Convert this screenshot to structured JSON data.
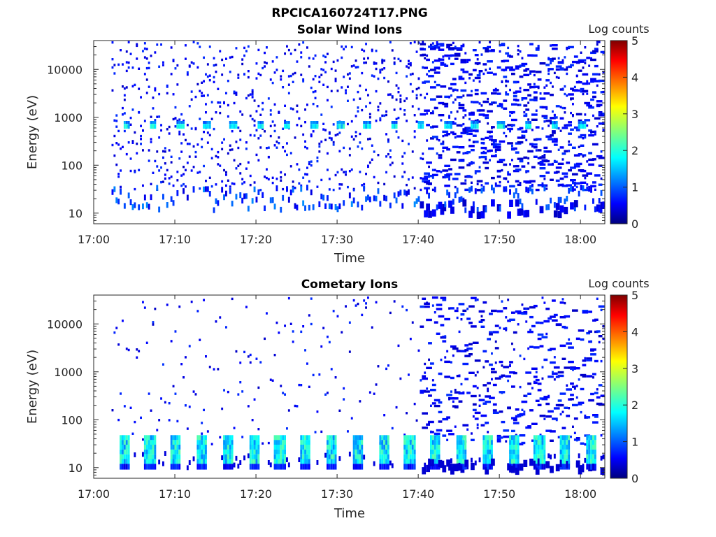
{
  "figure_title": "RPCICA160724T17.PNG",
  "chart_data": [
    {
      "type": "heatmap",
      "title": "Solar Wind Ions",
      "xlabel": "Time",
      "ylabel": "Energy (eV)",
      "xlim": [
        "17:00",
        "18:03"
      ],
      "ylim": [
        6,
        40000
      ],
      "yscale": "log",
      "x_ticks": [
        "17:00",
        "17:10",
        "17:20",
        "17:30",
        "17:40",
        "17:50",
        "18:00"
      ],
      "y_ticks": [
        "10",
        "100",
        "1000",
        "10000"
      ],
      "colorbar": {
        "label": "Log counts",
        "range": [
          0,
          5
        ],
        "ticks": [
          "0",
          "1",
          "2",
          "3",
          "4",
          "5"
        ]
      },
      "features": {
        "sparse_noise_start": "17:02",
        "dense_noise_start": "17:40",
        "solar_wind_beam_energy_eV": 650,
        "low_energy_band_eV": [
          10,
          30
        ]
      }
    },
    {
      "type": "heatmap",
      "title": "Cometary Ions",
      "xlabel": "Time",
      "ylabel": "Energy (eV)",
      "xlim": [
        "17:00",
        "18:03"
      ],
      "ylim": [
        6,
        40000
      ],
      "yscale": "log",
      "x_ticks": [
        "17:00",
        "17:10",
        "17:20",
        "17:30",
        "17:40",
        "17:50",
        "18:00"
      ],
      "y_ticks": [
        "10",
        "100",
        "1000",
        "10000"
      ],
      "colorbar": {
        "label": "Log counts",
        "range": [
          0,
          5
        ],
        "ticks": [
          "0",
          "1",
          "2",
          "3",
          "4",
          "5"
        ]
      },
      "features": {
        "cometary_band_eV": [
          12,
          40
        ],
        "periodic_bursts_every_min": 3.2,
        "dense_noise_start": "17:40"
      }
    }
  ]
}
